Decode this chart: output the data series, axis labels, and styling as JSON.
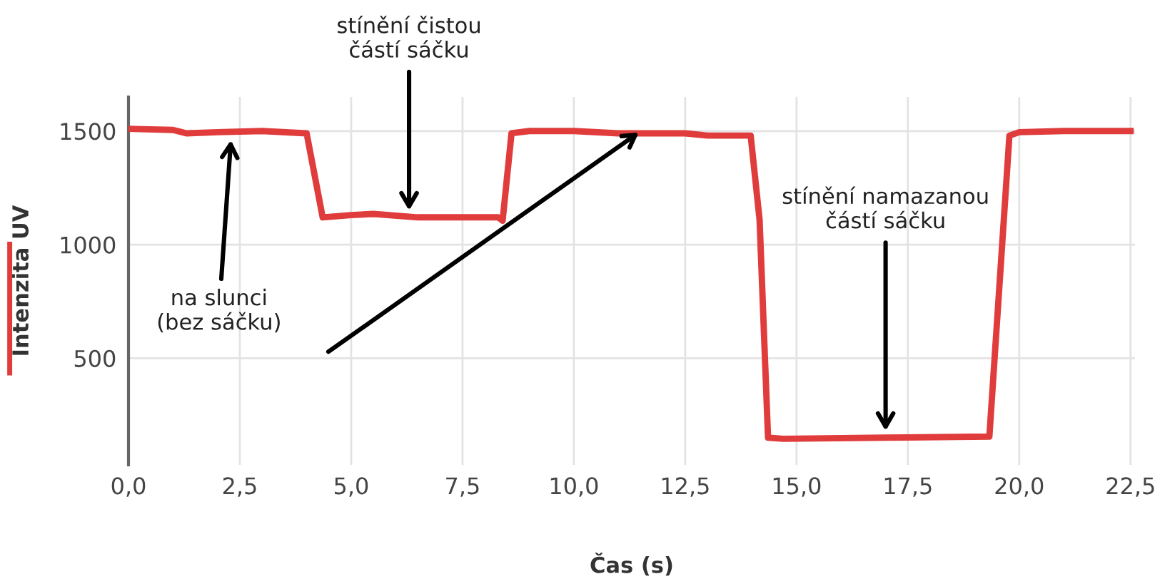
{
  "chart_data": {
    "type": "line",
    "xlabel": "Čas (s)",
    "ylabel": "Intenzita UV",
    "series": [
      {
        "color": "#e03c3c",
        "x": [
          0,
          1,
          1.3,
          2,
          3,
          4,
          4.36,
          5,
          5.5,
          6.5,
          7.5,
          8.3,
          8.4,
          8.6,
          9,
          10,
          11,
          12.5,
          13,
          13.97,
          14.17,
          14.36,
          14.7,
          17,
          19.33,
          19.78,
          20,
          21,
          22.5
        ],
        "values": [
          1510,
          1505,
          1490,
          1495,
          1500,
          1490,
          1120,
          1130,
          1135,
          1120,
          1120,
          1120,
          1105,
          1490,
          1500,
          1500,
          1490,
          1490,
          1480,
          1480,
          1110,
          150,
          145,
          150,
          155,
          1480,
          1495,
          1500,
          1500
        ]
      }
    ],
    "xlim": [
      0,
      22.6
    ],
    "ylim": [
      30,
      1650
    ],
    "xticks": [
      {
        "value": 0,
        "label": "0,0"
      },
      {
        "value": 2.5,
        "label": "2,5"
      },
      {
        "value": 5,
        "label": "5,0"
      },
      {
        "value": 7.5,
        "label": "7,5"
      },
      {
        "value": 10,
        "label": "10,0"
      },
      {
        "value": 12.5,
        "label": "12,5"
      },
      {
        "value": 15,
        "label": "15,0"
      },
      {
        "value": 17.5,
        "label": "17,5"
      },
      {
        "value": 20,
        "label": "20,0"
      },
      {
        "value": 22.5,
        "label": "22,5"
      }
    ],
    "yticks": [
      500,
      1000,
      1500
    ],
    "grid": true,
    "legend": false,
    "marker": "none",
    "line_style": "solid",
    "annotations": [
      {
        "text": "stínění čistou\nčástí sáčku",
        "x": 6.3,
        "y": 1150
      },
      {
        "text": "stínění namazanou\nčástí sáčku",
        "x": 17,
        "y": 180
      },
      {
        "text": "na slunci\n(bez sáčku)",
        "x": 2.3,
        "y": 1460
      }
    ]
  }
}
